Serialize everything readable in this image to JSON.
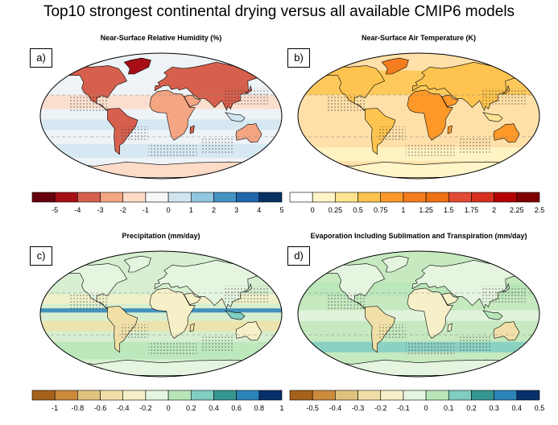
{
  "figure": {
    "title": "Top10 strongest continental drying versus all available CMIP6 models"
  },
  "panels": [
    {
      "letter": "a)",
      "title": "Near-Surface Relative Humidity (%)",
      "colorbar": {
        "colors": [
          "#67000d",
          "#a50f15",
          "#d6604d",
          "#f4a582",
          "#fddbc7",
          "#f7f7f7",
          "#d1e5f0",
          "#92c5de",
          "#4393c3",
          "#2166ac",
          "#053061"
        ],
        "labels": [
          "-5",
          "-4",
          "-3",
          "-2",
          "-1",
          "0",
          "1",
          "2",
          "3",
          "4",
          "5"
        ],
        "label_mode": "boundaries"
      }
    },
    {
      "letter": "b)",
      "title": "Near-Surface Air Temperature (K)",
      "colorbar": {
        "colors": [
          "#ffffff",
          "#fff5c8",
          "#fee391",
          "#fec44f",
          "#fe9929",
          "#f47d20",
          "#ec7014",
          "#e34a33",
          "#d7301f",
          "#b30000",
          "#7f0000"
        ],
        "labels": [
          "0",
          "0.25",
          "0.5",
          "0.75",
          "1",
          "1.25",
          "1.5",
          "1.75",
          "2",
          "2.25",
          "2.5"
        ],
        "label_mode": "boundaries"
      }
    },
    {
      "letter": "c)",
      "title": "Precipitation (mm/day)",
      "colorbar": {
        "colors": [
          "#a6611a",
          "#cc8a3c",
          "#dfc27d",
          "#f0e0a8",
          "#f6f0c8",
          "#e5f5e0",
          "#b8e6b8",
          "#80cdc1",
          "#35978f",
          "#2b83ba",
          "#08306b"
        ],
        "labels": [
          "-1",
          "-0.8",
          "-0.6",
          "-0.4",
          "-0.2",
          "0",
          "0.2",
          "0.4",
          "0.6",
          "0.8",
          "1"
        ],
        "label_mode": "boundaries"
      }
    },
    {
      "letter": "d)",
      "title": "Evaporation Including Sublimation and Transpiration (mm/day)",
      "colorbar": {
        "colors": [
          "#a6611a",
          "#cc8a3c",
          "#dfc27d",
          "#f0e0a8",
          "#f6f0c8",
          "#e5f5e0",
          "#b8e6b8",
          "#80cdc1",
          "#35978f",
          "#2b83ba",
          "#08306b"
        ],
        "labels": [
          "-0.5",
          "-0.4",
          "-0.3",
          "-0.2",
          "-0.1",
          "0",
          "0.1",
          "0.2",
          "0.3",
          "0.4",
          "0.5"
        ],
        "label_mode": "boundaries"
      }
    }
  ]
}
